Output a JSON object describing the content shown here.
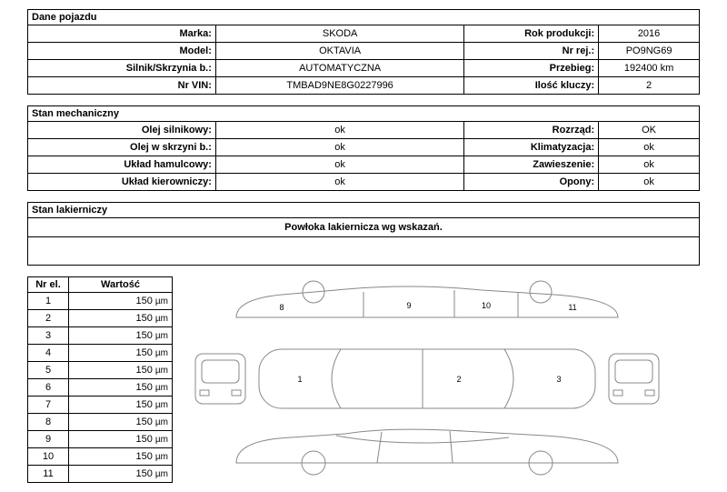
{
  "sections": {
    "vehicle_data": "Dane pojazdu",
    "mechanical": "Stan mechaniczny",
    "paint": "Stan lakierniczy",
    "paint_note": "Powłoka lakiernicza wg wskazań."
  },
  "vehicle": {
    "marka_label": "Marka:",
    "marka": "SKODA",
    "rok_label": "Rok produkcji:",
    "rok": "2016",
    "model_label": "Model:",
    "model": "OKTAVIA",
    "nrrej_label": "Nr rej.:",
    "nrrej": "PO9NG69",
    "silnik_label": "Silnik/Skrzynia b.:",
    "silnik": "AUTOMATYCZNA",
    "przebieg_label": "Przebieg:",
    "przebieg": "192400 km",
    "vin_label": "Nr VIN:",
    "vin": "TMBAD9NE8G0227996",
    "klucze_label": "Ilość kluczy:",
    "klucze": "2"
  },
  "mech": {
    "olej_silnik_label": "Olej silnikowy:",
    "olej_silnik": "ok",
    "rozrzad_label": "Rozrząd:",
    "rozrzad": "OK",
    "olej_skrzyni_label": "Olej w skrzyni b.:",
    "olej_skrzyni": "ok",
    "klima_label": "Klimatyzacja:",
    "klima": "ok",
    "hamulcowy_label": "Układ hamulcowy:",
    "hamulcowy": "ok",
    "zawieszenie_label": "Zawieszenie:",
    "zawieszenie": "ok",
    "kierowniczy_label": "Układ kierowniczy:",
    "kierowniczy": "ok",
    "opony_label": "Opony:",
    "opony": "ok"
  },
  "measurements": {
    "col_nr": "Nr el.",
    "col_val": "Wartość",
    "unit": "µm",
    "rows": [
      {
        "nr": "1",
        "val": "150"
      },
      {
        "nr": "2",
        "val": "150"
      },
      {
        "nr": "3",
        "val": "150"
      },
      {
        "nr": "4",
        "val": "150"
      },
      {
        "nr": "5",
        "val": "150"
      },
      {
        "nr": "6",
        "val": "150"
      },
      {
        "nr": "7",
        "val": "150"
      },
      {
        "nr": "8",
        "val": "150"
      },
      {
        "nr": "9",
        "val": "150"
      },
      {
        "nr": "10",
        "val": "150"
      },
      {
        "nr": "11",
        "val": "150"
      }
    ]
  },
  "diagram_labels": {
    "n1": "1",
    "n2": "2",
    "n3": "3",
    "n8": "8",
    "n9": "9",
    "n10": "10",
    "n11": "11"
  }
}
